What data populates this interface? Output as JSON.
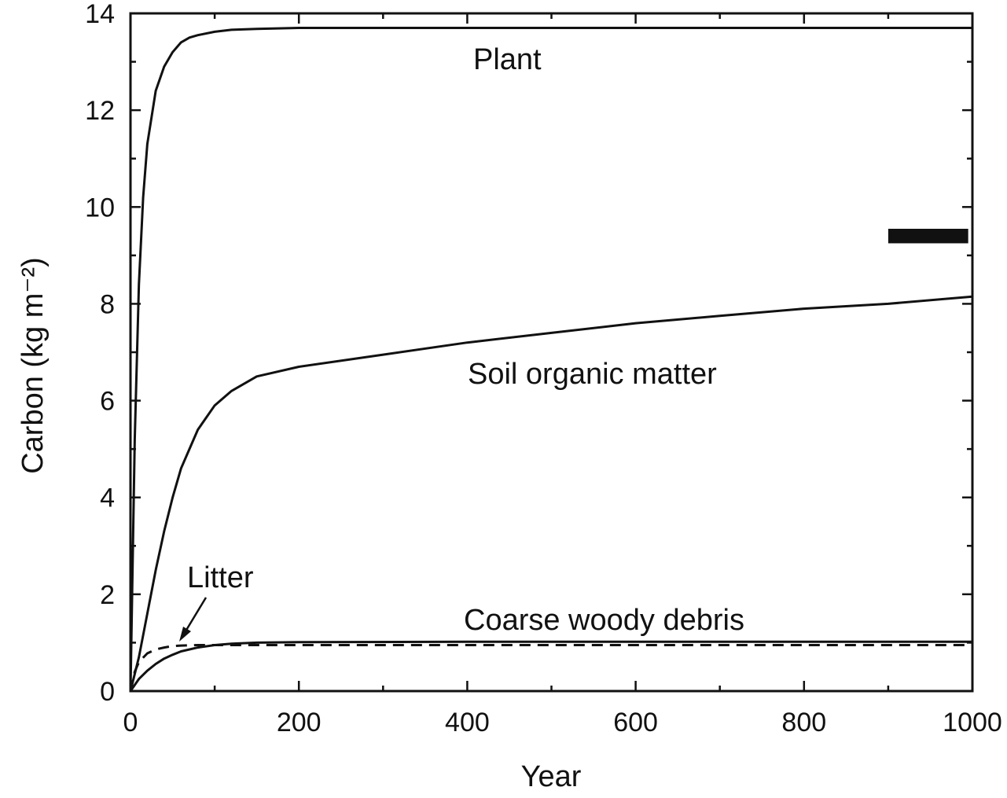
{
  "chart_data": {
    "type": "line",
    "xlabel": "Year",
    "ylabel": "Carbon (kg m⁻²)",
    "xlim": [
      0,
      1000
    ],
    "ylim": [
      0,
      14
    ],
    "x_ticks": [
      "0",
      "200",
      "400",
      "600",
      "800",
      "1000"
    ],
    "y_ticks": [
      "0",
      "2",
      "4",
      "6",
      "8",
      "10",
      "12",
      "14"
    ],
    "grid": false,
    "series": [
      {
        "name": "Plant",
        "style": "solid",
        "x": [
          0,
          5,
          10,
          15,
          20,
          30,
          40,
          50,
          60,
          70,
          80,
          100,
          120,
          150,
          200,
          300,
          400,
          600,
          800,
          1000
        ],
        "y": [
          0,
          5.2,
          8.4,
          10.2,
          11.3,
          12.4,
          12.9,
          13.2,
          13.4,
          13.5,
          13.55,
          13.62,
          13.66,
          13.68,
          13.7,
          13.7,
          13.7,
          13.7,
          13.7,
          13.7
        ]
      },
      {
        "name": "Soil organic matter",
        "style": "solid",
        "x": [
          0,
          10,
          20,
          30,
          40,
          50,
          60,
          70,
          80,
          100,
          120,
          150,
          200,
          300,
          400,
          500,
          600,
          700,
          800,
          900,
          1000
        ],
        "y": [
          0,
          0.7,
          1.6,
          2.5,
          3.3,
          4.0,
          4.6,
          5.0,
          5.4,
          5.9,
          6.2,
          6.5,
          6.7,
          6.95,
          7.2,
          7.4,
          7.6,
          7.75,
          7.9,
          8.0,
          8.15
        ]
      },
      {
        "name": "Coarse woody debris",
        "style": "solid",
        "x": [
          0,
          10,
          20,
          30,
          40,
          50,
          60,
          80,
          100,
          120,
          150,
          200,
          400,
          600,
          800,
          1000
        ],
        "y": [
          0,
          0.25,
          0.42,
          0.56,
          0.67,
          0.75,
          0.82,
          0.9,
          0.95,
          0.98,
          1.0,
          1.01,
          1.02,
          1.02,
          1.02,
          1.02
        ]
      },
      {
        "name": "Litter",
        "style": "dashed",
        "x": [
          0,
          5,
          10,
          20,
          30,
          40,
          50,
          60,
          80,
          100,
          200,
          400,
          600,
          800,
          1000
        ],
        "y": [
          0,
          0.4,
          0.6,
          0.78,
          0.86,
          0.9,
          0.93,
          0.94,
          0.95,
          0.95,
          0.95,
          0.95,
          0.95,
          0.95,
          0.95
        ]
      }
    ],
    "observed_range": {
      "x": [
        900,
        995
      ],
      "y": [
        9.25,
        9.55
      ]
    }
  }
}
